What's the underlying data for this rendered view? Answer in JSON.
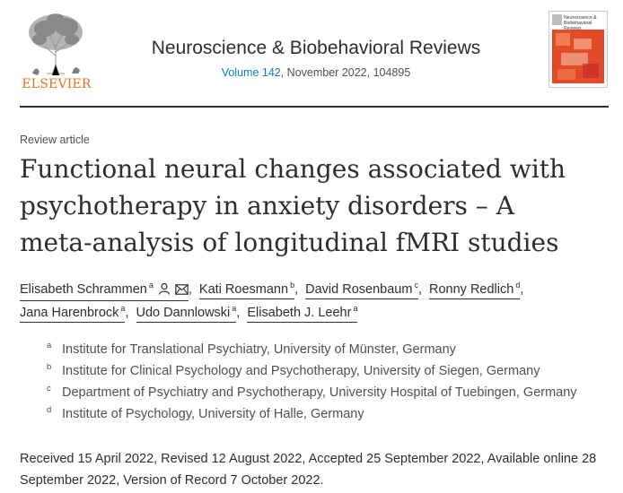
{
  "header": {
    "publisher": "ELSEVIER",
    "journal_title": "Neuroscience & Biobehavioral Reviews",
    "volume_link": "Volume 142",
    "citation_rest": ", November 2022, 104895",
    "cover_title": "Neuroscience & Biobehavioral Reviews"
  },
  "article": {
    "type": "Review article",
    "title_lines": [
      "Functional neural changes associated with",
      "psychotherapy in anxiety disorders – A",
      "meta-analysis of longitudinal fMRI studies"
    ]
  },
  "authors": [
    {
      "name": "Elisabeth Schrammen",
      "sup": "a",
      "icons": [
        "person-icon",
        "envelope-icon"
      ]
    },
    {
      "name": "Kati Roesmann",
      "sup": "b"
    },
    {
      "name": "David Rosenbaum",
      "sup": "c"
    },
    {
      "name": "Ronny Redlich",
      "sup": "d"
    },
    {
      "name": "Jana Harenbrock",
      "sup": "a"
    },
    {
      "name": "Udo Dannlowski",
      "sup": "a"
    },
    {
      "name": "Elisabeth J. Leehr",
      "sup": "a"
    }
  ],
  "affiliations": [
    {
      "label": "a",
      "text": "Institute for Translational Psychiatry, University of Münster, Germany"
    },
    {
      "label": "b",
      "text": "Institute for Clinical Psychology and Psychotherapy, University of Siegen, Germany"
    },
    {
      "label": "c",
      "text": "Department of Psychiatry and Psychotherapy, University Hospital of Tuebingen, Germany"
    },
    {
      "label": "d",
      "text": "Institute of Psychology, University of Halle, Germany"
    }
  ],
  "history": {
    "line1": "Received 15 April 2022, Revised 12 August 2022, Accepted 25 September 2022, Available online 28",
    "line2": "September 2022, Version of Record 7 October 2022."
  },
  "colors": {
    "elsevier_orange": "#e9711c",
    "link_blue": "#0c7dbb",
    "text": "#2e2e2e"
  }
}
